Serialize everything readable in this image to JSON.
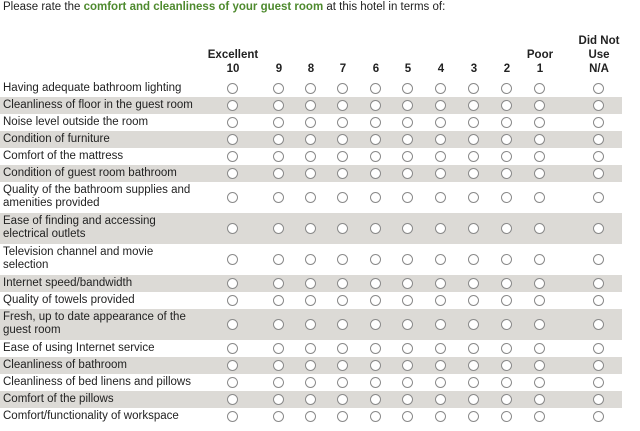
{
  "prompt": {
    "before": "Please rate the ",
    "emphasis": "comfort and cleanliness of your guest room",
    "after": " at this hotel in terms of:"
  },
  "columns": [
    [
      "Excellent",
      "10"
    ],
    [
      "9"
    ],
    [
      "8"
    ],
    [
      "7"
    ],
    [
      "6"
    ],
    [
      "5"
    ],
    [
      "4"
    ],
    [
      "3"
    ],
    [
      "2"
    ],
    [
      "Poor",
      "1"
    ],
    [
      "Did Not",
      "Use",
      "N/A"
    ]
  ],
  "rows": [
    [
      "Having adequate bathroom lighting"
    ],
    [
      "Cleanliness of floor in the guest room"
    ],
    [
      "Noise level outside the room"
    ],
    [
      "Condition of furniture"
    ],
    [
      "Comfort of the mattress"
    ],
    [
      "Condition of guest room bathroom"
    ],
    [
      "Quality of the bathroom supplies and",
      "amenities provided"
    ],
    [
      "Ease of finding and accessing",
      "electrical outlets"
    ],
    [
      "Television channel and movie",
      "selection"
    ],
    [
      "Internet speed/bandwidth"
    ],
    [
      "Quality of towels provided"
    ],
    [
      "Fresh, up to date appearance of the",
      "guest room"
    ],
    [
      "Ease of using Internet service"
    ],
    [
      "Cleanliness of bathroom"
    ],
    [
      "Cleanliness of bed linens and pillows"
    ],
    [
      "Comfort of the pillows"
    ],
    [
      "Comfort/functionality of workspace"
    ]
  ]
}
